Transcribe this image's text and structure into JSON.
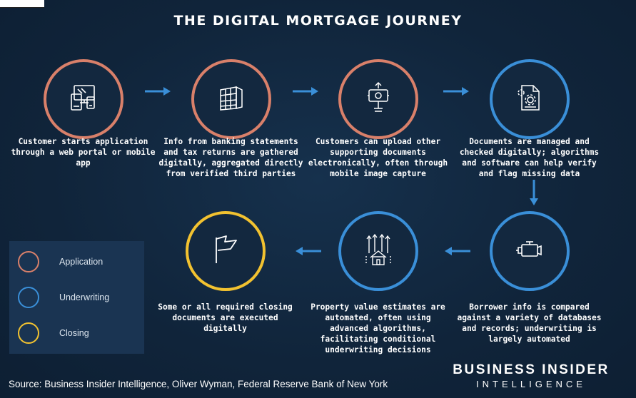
{
  "title": "THE DIGITAL MORTGAGE JOURNEY",
  "colors": {
    "application": "#d9806a",
    "underwriting": "#3a8fd8",
    "closing": "#f2c230",
    "arrow": "#3a8fd8",
    "background": "#10243a"
  },
  "steps": [
    {
      "text": "Customer starts application through a web portal or mobile app",
      "icon": "devices-icon",
      "phase": "application"
    },
    {
      "text": "Info from banking statements and tax returns are gathered digitally, aggregated directly from verified third parties",
      "icon": "building-icon",
      "phase": "application"
    },
    {
      "text": "Customers can upload other supporting documents electronically, often through mobile image capture",
      "icon": "phone-upload-icon",
      "phase": "application"
    },
    {
      "text": "Documents are managed and checked digitally; algorithms and software can help verify and flag missing data",
      "icon": "document-gear-icon",
      "phase": "underwriting"
    },
    {
      "text": "Borrower info is compared against a variety of databases and records; underwriting is largely automated",
      "icon": "engine-icon",
      "phase": "underwriting"
    },
    {
      "text": "Property value estimates are automated, often using advanced algorithms, facilitating conditional underwriting decisions",
      "icon": "house-arrows-icon",
      "phase": "underwriting"
    },
    {
      "text": "Some or all required closing documents are executed digitally",
      "icon": "flag-icon",
      "phase": "closing"
    }
  ],
  "legend": [
    {
      "label": "Application",
      "color": "#d9806a"
    },
    {
      "label": "Underwriting",
      "color": "#3a8fd8"
    },
    {
      "label": "Closing",
      "color": "#f2c230"
    }
  ],
  "source": "Source: Business Insider Intelligence, Oliver Wyman, Federal Reserve Bank of New York",
  "brand": {
    "line1": "BUSINESS INSIDER",
    "line2": "INTELLIGENCE"
  }
}
